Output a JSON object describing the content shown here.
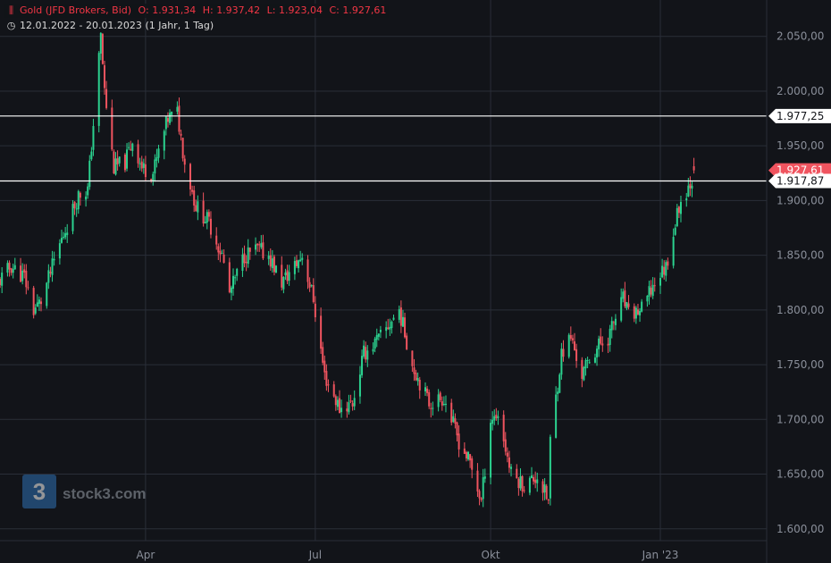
{
  "header": {
    "symbol_icon": "bar-chart-icon",
    "instrument": "Gold (JFD Brokers, Bid)",
    "open_label": "O:",
    "open": "1.931,34",
    "high_label": "H:",
    "high": "1.937,42",
    "low_label": "L:",
    "low": "1.923,04",
    "close_label": "C:",
    "close": "1.927,61",
    "range_icon": "clock-icon",
    "date_range": "12.01.2022 - 20.01.2023",
    "interval": "(1 Jahr, 1 Tag)"
  },
  "watermark": {
    "text": "stock3.com",
    "logo_glyph": "3"
  },
  "colors": {
    "up": "#26a69a",
    "up_bright": "#2bd28f",
    "down": "#f0545f",
    "background": "#121419",
    "grid": "#2a2e38",
    "axis_text": "#8a8f9a",
    "line": "#ffffff"
  },
  "chart_data": {
    "type": "candlestick",
    "title": "Gold (JFD Brokers, Bid)",
    "ylim": [
      1590,
      2080
    ],
    "y_ticks": [
      1600,
      1650,
      1700,
      1750,
      1800,
      1850,
      1900,
      1950,
      2000,
      2050
    ],
    "y_tick_labels": [
      "1.600,00",
      "1.650,00",
      "1.700,00",
      "1.750,00",
      "1.800,00",
      "1.850,00",
      "1.900,00",
      "1.950,00",
      "2.000,00",
      "2.050,00"
    ],
    "x_start": "2022-01-12",
    "x_end": "2023-01-20",
    "x_view_end": "2023-02-28",
    "x_ticks": [
      {
        "date": "2022-04-01",
        "label": "Apr"
      },
      {
        "date": "2022-07-01",
        "label": "Jul"
      },
      {
        "date": "2022-10-03",
        "label": "Okt"
      },
      {
        "date": "2023-01-02",
        "label": "Jan '23"
      }
    ],
    "horizontal_lines": [
      {
        "value": 1977.25,
        "label": "1.977,25"
      },
      {
        "value": 1917.87,
        "label": "1.917,87"
      }
    ],
    "last_price": {
      "value": 1927.61,
      "label": "1.927,61"
    },
    "close_path": [
      [
        "2022-01-12",
        1825
      ],
      [
        "2022-01-19",
        1840
      ],
      [
        "2022-01-26",
        1830
      ],
      [
        "2022-01-31",
        1800
      ],
      [
        "2022-02-04",
        1808
      ],
      [
        "2022-02-14",
        1860
      ],
      [
        "2022-02-24",
        1905
      ],
      [
        "2022-03-01",
        1910
      ],
      [
        "2022-03-08",
        2050
      ],
      [
        "2022-03-10",
        2000
      ],
      [
        "2022-03-15",
        1930
      ],
      [
        "2022-03-21",
        1935
      ],
      [
        "2022-03-25",
        1955
      ],
      [
        "2022-03-30",
        1930
      ],
      [
        "2022-04-05",
        1925
      ],
      [
        "2022-04-13",
        1975
      ],
      [
        "2022-04-18",
        1980
      ],
      [
        "2022-04-22",
        1935
      ],
      [
        "2022-04-28",
        1895
      ],
      [
        "2022-05-05",
        1880
      ],
      [
        "2022-05-12",
        1850
      ],
      [
        "2022-05-16",
        1815
      ],
      [
        "2022-05-24",
        1850
      ],
      [
        "2022-05-31",
        1855
      ],
      [
        "2022-06-06",
        1850
      ],
      [
        "2022-06-13",
        1825
      ],
      [
        "2022-06-20",
        1840
      ],
      [
        "2022-06-24",
        1850
      ],
      [
        "2022-06-30",
        1810
      ],
      [
        "2022-07-06",
        1740
      ],
      [
        "2022-07-14",
        1710
      ],
      [
        "2022-07-21",
        1715
      ],
      [
        "2022-07-27",
        1760
      ],
      [
        "2022-08-05",
        1775
      ],
      [
        "2022-08-15",
        1800
      ],
      [
        "2022-08-22",
        1750
      ],
      [
        "2022-08-31",
        1715
      ],
      [
        "2022-09-08",
        1720
      ],
      [
        "2022-09-16",
        1680
      ],
      [
        "2022-09-22",
        1660
      ],
      [
        "2022-09-28",
        1625
      ],
      [
        "2022-10-03",
        1700
      ],
      [
        "2022-10-07",
        1705
      ],
      [
        "2022-10-14",
        1650
      ],
      [
        "2022-10-21",
        1640
      ],
      [
        "2022-10-28",
        1648
      ],
      [
        "2022-11-03",
        1625
      ],
      [
        "2022-11-04",
        1680
      ],
      [
        "2022-11-10",
        1760
      ],
      [
        "2022-11-15",
        1775
      ],
      [
        "2022-11-21",
        1740
      ],
      [
        "2022-11-25",
        1755
      ],
      [
        "2022-11-30",
        1768
      ],
      [
        "2022-12-05",
        1775
      ],
      [
        "2022-12-13",
        1810
      ],
      [
        "2022-12-16",
        1795
      ],
      [
        "2022-12-23",
        1800
      ],
      [
        "2022-12-30",
        1825
      ],
      [
        "2023-01-05",
        1840
      ],
      [
        "2023-01-12",
        1895
      ],
      [
        "2023-01-16",
        1910
      ],
      [
        "2023-01-19",
        1920
      ],
      [
        "2023-01-20",
        1927.61
      ]
    ]
  }
}
